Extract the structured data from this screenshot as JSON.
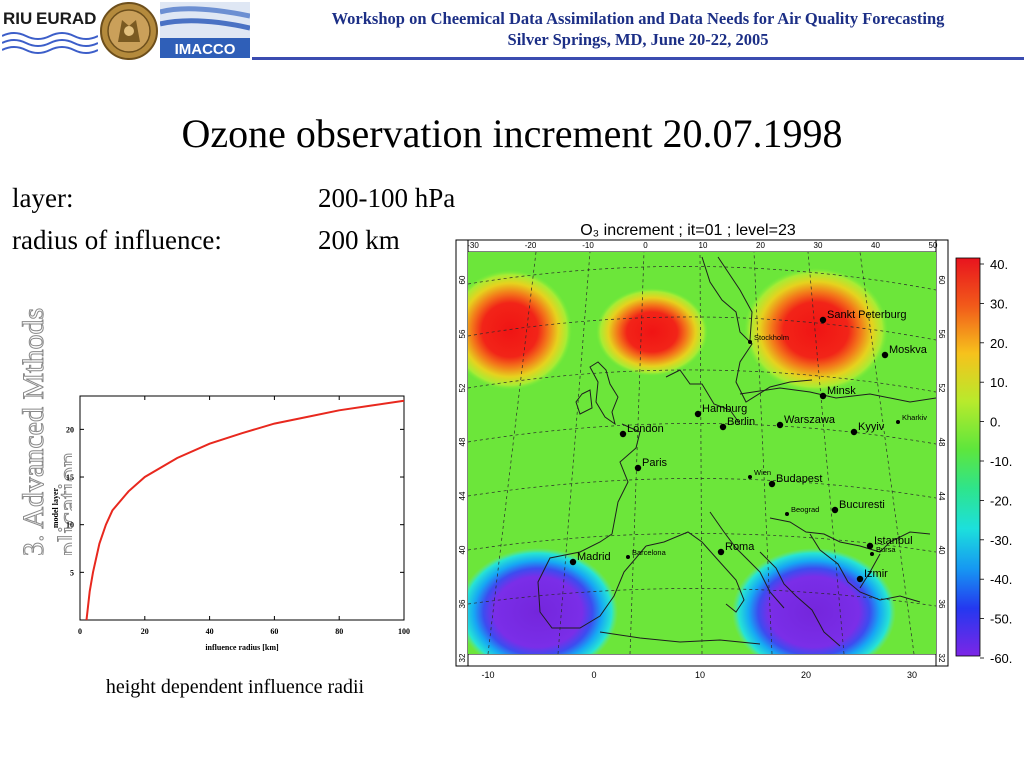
{
  "header": {
    "logo_riu_text": "RIU",
    "logo_eurad_text": "EURAD",
    "seal_icon": "university-seal-icon",
    "logo_imacco_text": "IMACCO",
    "workshop_line1": "Workshop on Cheemical Data Assimilation and Data Needs for Air Quality Forecasting",
    "workshop_line2": "Silver Springs, MD, June 20-22, 2005",
    "accent_color": "#1c2f86"
  },
  "slide": {
    "title": "Ozone observation increment 20.07.1998",
    "layer_label": "layer:",
    "layer_value": "200-100 hPa",
    "radius_label": "radius of influence:",
    "radius_value": "200 km",
    "watermark_line1": "3. Advanced Mthods",
    "watermark_line2": "plication",
    "caption": "height dependent influence radii"
  },
  "chart_data": [
    {
      "type": "line",
      "xlabel": "influence radius [km]",
      "ylabel": "model layer",
      "xlim": [
        0,
        100
      ],
      "ylim": [
        0,
        23.5
      ],
      "x_ticks": [
        "0",
        "20",
        "40",
        "60",
        "80",
        "100"
      ],
      "y_ticks": [
        "5",
        "10",
        "15",
        "20"
      ],
      "series": [
        {
          "color": "#e8281e",
          "x": [
            2,
            3,
            4,
            6,
            8,
            10,
            15,
            20,
            30,
            40,
            50,
            60,
            70,
            80,
            90,
            100
          ],
          "y": [
            0,
            3,
            5,
            8,
            10,
            11.5,
            13.5,
            15,
            17,
            18.5,
            19.6,
            20.6,
            21.3,
            22,
            22.5,
            23
          ]
        }
      ]
    },
    {
      "type": "heatmap",
      "title": "O₃ increment ; it=01  ; level=23",
      "top_lon_ticks": [
        "-30",
        "-20",
        "-10",
        "0",
        "10",
        "20",
        "30",
        "40",
        "50"
      ],
      "bottom_lon_ticks": [
        "-10",
        "0",
        "10",
        "20",
        "30"
      ],
      "lat_ticks": [
        "60",
        "56",
        "52",
        "48",
        "44",
        "40",
        "36",
        "32"
      ],
      "colorbar_ticks": [
        "40.",
        "30.",
        "20.",
        "10.",
        "0.",
        "-10.",
        "-20.",
        "-30.",
        "-40.",
        "-50.",
        "-60."
      ],
      "colorbar_range": [
        -60,
        40
      ],
      "background_value": 0,
      "cities": [
        {
          "name": "Sankt Peterburg",
          "size": "large"
        },
        {
          "name": "Stockholm",
          "size": "small"
        },
        {
          "name": "Moskva",
          "size": "large"
        },
        {
          "name": "Minsk",
          "size": "large"
        },
        {
          "name": "Hamburg",
          "size": "large"
        },
        {
          "name": "Berlin",
          "size": "large"
        },
        {
          "name": "Warszawa",
          "size": "large"
        },
        {
          "name": "London",
          "size": "large"
        },
        {
          "name": "Kyyiv",
          "size": "large"
        },
        {
          "name": "Kharkiv",
          "size": "small"
        },
        {
          "name": "Paris",
          "size": "large"
        },
        {
          "name": "Wien",
          "size": "small"
        },
        {
          "name": "Budapest",
          "size": "large"
        },
        {
          "name": "Beograd",
          "size": "small"
        },
        {
          "name": "Bucuresti",
          "size": "large"
        },
        {
          "name": "Istanbul",
          "size": "large"
        },
        {
          "name": "Bursa",
          "size": "small"
        },
        {
          "name": "Madrid",
          "size": "large"
        },
        {
          "name": "Barcelona",
          "size": "small"
        },
        {
          "name": "Roma",
          "size": "large"
        },
        {
          "name": "Izmir",
          "size": "large"
        }
      ],
      "anomalies": [
        {
          "value": 40,
          "label": "north-atlantic"
        },
        {
          "value": 40,
          "label": "baltic"
        },
        {
          "value": 40,
          "label": "russia"
        },
        {
          "value": -60,
          "label": "iberia"
        },
        {
          "value": -60,
          "label": "aegean"
        }
      ]
    }
  ]
}
